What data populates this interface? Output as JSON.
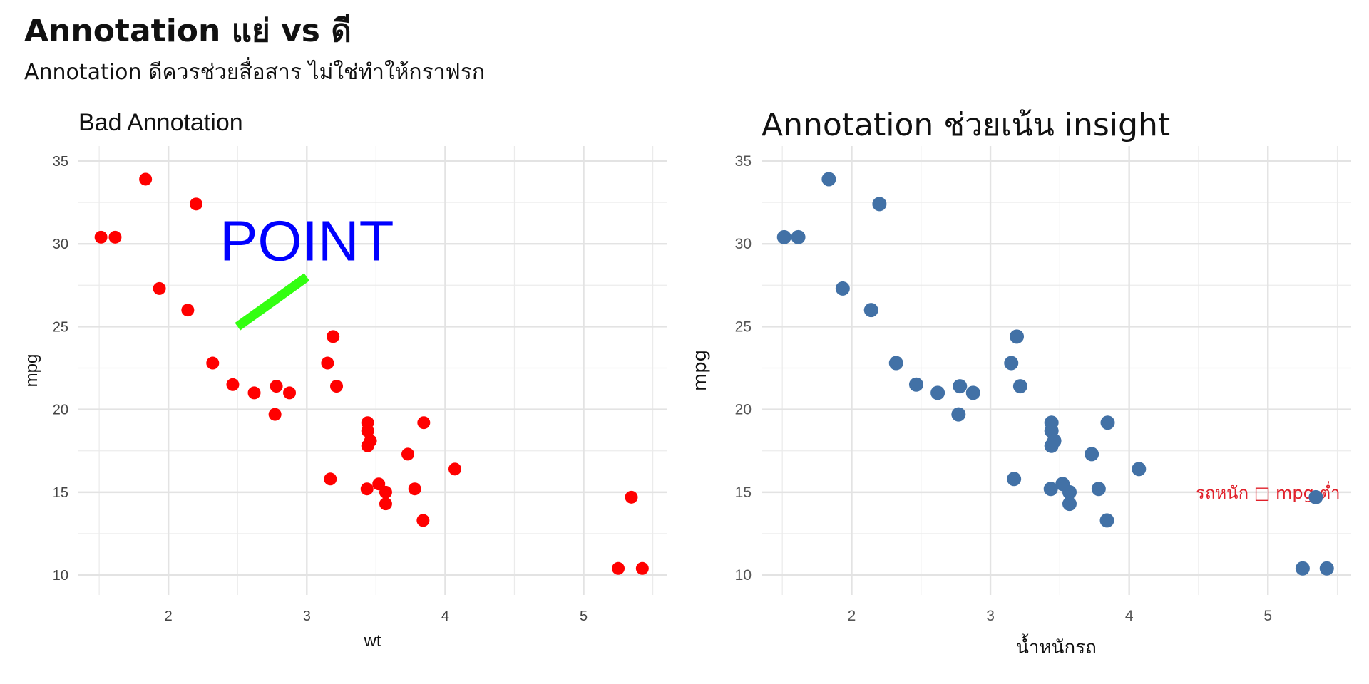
{
  "page": {
    "title": "Annotation แย่ vs ดี",
    "subtitle": "Annotation ดีควรช่วยสื่อสาร ไม่ใช่ทำให้กราฟรก"
  },
  "chart_data": [
    {
      "type": "scatter",
      "title": "Bad Annotation",
      "xlabel": "wt",
      "ylabel": "mpg",
      "xlim": [
        1.35,
        5.6
      ],
      "ylim": [
        8.8,
        35.9
      ],
      "x_ticks": [
        2,
        3,
        4,
        5
      ],
      "y_ticks": [
        10,
        15,
        20,
        25,
        30,
        35
      ],
      "grid": true,
      "point_color": "#ff0000",
      "series": [
        {
          "x": [
            2.62,
            2.875,
            2.32,
            3.215,
            3.44,
            3.46,
            3.57,
            3.19,
            3.15,
            3.44,
            3.44,
            4.07,
            3.73,
            3.78,
            5.25,
            5.424,
            5.345,
            2.2,
            1.615,
            1.835,
            2.465,
            3.52,
            3.435,
            3.84,
            3.845,
            1.935,
            2.14,
            1.513,
            3.17,
            2.77,
            3.57,
            2.78
          ],
          "y": [
            21.0,
            21.0,
            22.8,
            21.4,
            18.7,
            18.1,
            14.3,
            24.4,
            22.8,
            19.2,
            17.8,
            16.4,
            17.3,
            15.2,
            10.4,
            10.4,
            14.7,
            32.4,
            30.4,
            33.9,
            21.5,
            15.5,
            15.2,
            13.3,
            19.2,
            27.3,
            26.0,
            30.4,
            15.8,
            19.7,
            15.0,
            21.4
          ]
        }
      ],
      "annotations": [
        {
          "text": "POINT",
          "x": 3.0,
          "y": 29.0,
          "color": "#0000ff"
        },
        {
          "shape": "segment",
          "x1": 2.5,
          "y1": 25.0,
          "x2": 3.0,
          "y2": 28.0,
          "color": "#33ff11"
        }
      ]
    },
    {
      "type": "scatter",
      "title": "Annotation ช่วยเน้น insight",
      "xlabel": "น้ำหนักรถ",
      "ylabel": "mpg",
      "xlim": [
        1.35,
        5.6
      ],
      "ylim": [
        8.8,
        35.9
      ],
      "x_ticks": [
        2,
        3,
        4,
        5
      ],
      "y_ticks": [
        10,
        15,
        20,
        25,
        30,
        35
      ],
      "grid": true,
      "point_color": "#4271a6",
      "series": [
        {
          "x": [
            2.62,
            2.875,
            2.32,
            3.215,
            3.44,
            3.46,
            3.57,
            3.19,
            3.15,
            3.44,
            3.44,
            4.07,
            3.73,
            3.78,
            5.25,
            5.424,
            5.345,
            2.2,
            1.615,
            1.835,
            2.465,
            3.52,
            3.435,
            3.84,
            3.845,
            1.935,
            2.14,
            1.513,
            3.17,
            2.77,
            3.57,
            2.78
          ],
          "y": [
            21.0,
            21.0,
            22.8,
            21.4,
            18.7,
            18.1,
            14.3,
            24.4,
            22.8,
            19.2,
            17.8,
            16.4,
            17.3,
            15.2,
            10.4,
            10.4,
            14.7,
            32.4,
            30.4,
            33.9,
            21.5,
            15.5,
            15.2,
            13.3,
            19.2,
            27.3,
            26.0,
            30.4,
            15.8,
            19.7,
            15.0,
            21.4
          ]
        }
      ],
      "annotations": [
        {
          "text": "รถหนัก □ mpg ต่ำ",
          "x": 5.0,
          "y": 15.0,
          "color": "#e0202a"
        }
      ]
    }
  ]
}
